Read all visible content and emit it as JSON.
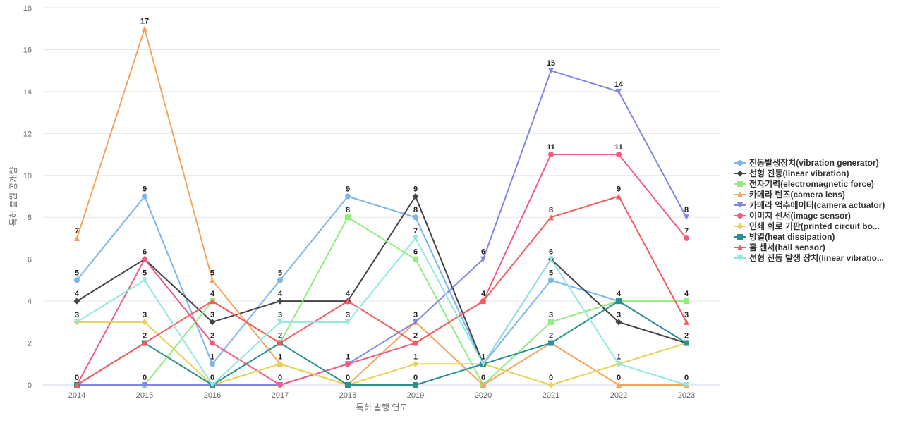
{
  "chart_data": {
    "type": "line",
    "title": "",
    "xlabel": "특허 발행 연도",
    "ylabel": "특허 출원 공개량",
    "ylim": [
      0,
      18
    ],
    "yticks": [
      0,
      2,
      4,
      6,
      8,
      10,
      12,
      14,
      16,
      18
    ],
    "grid": true,
    "legend_position": "right",
    "x": [
      "2014",
      "2015",
      "2016",
      "2017",
      "2018",
      "2019",
      "2020",
      "2021",
      "2022",
      "2023"
    ],
    "series": [
      {
        "name": "진동발생장치(vibration generator)",
        "color": "#7cb5ec",
        "marker": "circle",
        "values": [
          5,
          9,
          1,
          5,
          9,
          8,
          1,
          5,
          4,
          2
        ]
      },
      {
        "name": "선형 진동(linear vibration)",
        "color": "#434348",
        "marker": "diamond",
        "values": [
          4,
          6,
          3,
          4,
          4,
          9,
          1,
          6,
          3,
          2
        ]
      },
      {
        "name": "전자기력(electromagnetic force)",
        "color": "#90ed7d",
        "marker": "square",
        "values": [
          0,
          0,
          4,
          2,
          8,
          6,
          0,
          3,
          4,
          4
        ]
      },
      {
        "name": "카메라 렌즈(camera lens)",
        "color": "#f7a35c",
        "marker": "triangle",
        "values": [
          7,
          17,
          5,
          1,
          0,
          3,
          0,
          2,
          0,
          0
        ]
      },
      {
        "name": "카메라 액추에이터(camera actuator)",
        "color": "#8085e9",
        "marker": "triangle-down",
        "values": [
          0,
          0,
          0,
          0,
          1,
          3,
          6,
          15,
          14,
          8
        ]
      },
      {
        "name": "이미지 센서(image sensor)",
        "color": "#f15c80",
        "marker": "circle",
        "values": [
          0,
          6,
          2,
          0,
          1,
          2,
          4,
          11,
          11,
          7
        ]
      },
      {
        "name": "인쇄 회로 기판(printed circuit bo...",
        "color": "#e4d354",
        "marker": "diamond",
        "values": [
          3,
          3,
          0,
          1,
          0,
          1,
          1,
          0,
          1,
          2
        ]
      },
      {
        "name": "방열(heat dissipation)",
        "color": "#2b908f",
        "marker": "square",
        "values": [
          0,
          2,
          0,
          2,
          0,
          0,
          1,
          2,
          4,
          2
        ]
      },
      {
        "name": "홀 센서(hall sensor)",
        "color": "#f45b5b",
        "marker": "triangle",
        "values": [
          0,
          2,
          4,
          2,
          4,
          2,
          4,
          8,
          9,
          3
        ]
      },
      {
        "name": "선형 진동 발생 장치(linear vibratio...",
        "color": "#91e8e1",
        "marker": "triangle-down",
        "values": [
          3,
          5,
          0,
          3,
          3,
          7,
          1,
          6,
          1,
          0
        ]
      }
    ],
    "data_labels": [
      {
        "x": "2014",
        "text": "7",
        "value": 7
      },
      {
        "x": "2014",
        "text": "5",
        "value": 5
      },
      {
        "x": "2014",
        "text": "4",
        "value": 4
      },
      {
        "x": "2014",
        "text": "3",
        "value": 3
      },
      {
        "x": "2014",
        "text": "0",
        "value": 0
      },
      {
        "x": "2015",
        "text": "17",
        "value": 17
      },
      {
        "x": "2015",
        "text": "9",
        "value": 9
      },
      {
        "x": "2015",
        "text": "6",
        "value": 6
      },
      {
        "x": "2015",
        "text": "5",
        "value": 5
      },
      {
        "x": "2015",
        "text": "3",
        "value": 3
      },
      {
        "x": "2015",
        "text": "2",
        "value": 2
      },
      {
        "x": "2015",
        "text": "0",
        "value": 0
      },
      {
        "x": "2016",
        "text": "5",
        "value": 5
      },
      {
        "x": "2016",
        "text": "4",
        "value": 4
      },
      {
        "x": "2016",
        "text": "3",
        "value": 3
      },
      {
        "x": "2016",
        "text": "2",
        "value": 2
      },
      {
        "x": "2016",
        "text": "1",
        "value": 1
      },
      {
        "x": "2016",
        "text": "0",
        "value": 0
      },
      {
        "x": "2017",
        "text": "5",
        "value": 5
      },
      {
        "x": "2017",
        "text": "4",
        "value": 4
      },
      {
        "x": "2017",
        "text": "3",
        "value": 3
      },
      {
        "x": "2017",
        "text": "2",
        "value": 2
      },
      {
        "x": "2017",
        "text": "1",
        "value": 1
      },
      {
        "x": "2017",
        "text": "0",
        "value": 0
      },
      {
        "x": "2018",
        "text": "9",
        "value": 9
      },
      {
        "x": "2018",
        "text": "8",
        "value": 8
      },
      {
        "x": "2018",
        "text": "4",
        "value": 4
      },
      {
        "x": "2018",
        "text": "3",
        "value": 3
      },
      {
        "x": "2018",
        "text": "1",
        "value": 1
      },
      {
        "x": "2018",
        "text": "0",
        "value": 0
      },
      {
        "x": "2019",
        "text": "9",
        "value": 9
      },
      {
        "x": "2019",
        "text": "8",
        "value": 8
      },
      {
        "x": "2019",
        "text": "7",
        "value": 7
      },
      {
        "x": "2019",
        "text": "6",
        "value": 6
      },
      {
        "x": "2019",
        "text": "3",
        "value": 3
      },
      {
        "x": "2019",
        "text": "2",
        "value": 2
      },
      {
        "x": "2019",
        "text": "1",
        "value": 1
      },
      {
        "x": "2019",
        "text": "0",
        "value": 0
      },
      {
        "x": "2020",
        "text": "6",
        "value": 6
      },
      {
        "x": "2020",
        "text": "4",
        "value": 4
      },
      {
        "x": "2020",
        "text": "1",
        "value": 1
      },
      {
        "x": "2020",
        "text": "0",
        "value": 0
      },
      {
        "x": "2021",
        "text": "15",
        "value": 15
      },
      {
        "x": "2021",
        "text": "11",
        "value": 11
      },
      {
        "x": "2021",
        "text": "8",
        "value": 8
      },
      {
        "x": "2021",
        "text": "6",
        "value": 6
      },
      {
        "x": "2021",
        "text": "5",
        "value": 5
      },
      {
        "x": "2021",
        "text": "3",
        "value": 3
      },
      {
        "x": "2021",
        "text": "2",
        "value": 2
      },
      {
        "x": "2021",
        "text": "0",
        "value": 0
      },
      {
        "x": "2022",
        "text": "14",
        "value": 14
      },
      {
        "x": "2022",
        "text": "11",
        "value": 11
      },
      {
        "x": "2022",
        "text": "9",
        "value": 9
      },
      {
        "x": "2022",
        "text": "4",
        "value": 4
      },
      {
        "x": "2022",
        "text": "3",
        "value": 3
      },
      {
        "x": "2022",
        "text": "1",
        "value": 1
      },
      {
        "x": "2022",
        "text": "0",
        "value": 0
      },
      {
        "x": "2023",
        "text": "8",
        "value": 8
      },
      {
        "x": "2023",
        "text": "7",
        "value": 7
      },
      {
        "x": "2023",
        "text": "4",
        "value": 4
      },
      {
        "x": "2023",
        "text": "3",
        "value": 3
      },
      {
        "x": "2023",
        "text": "2",
        "value": 2
      },
      {
        "x": "2023",
        "text": "0",
        "value": 0
      }
    ]
  }
}
